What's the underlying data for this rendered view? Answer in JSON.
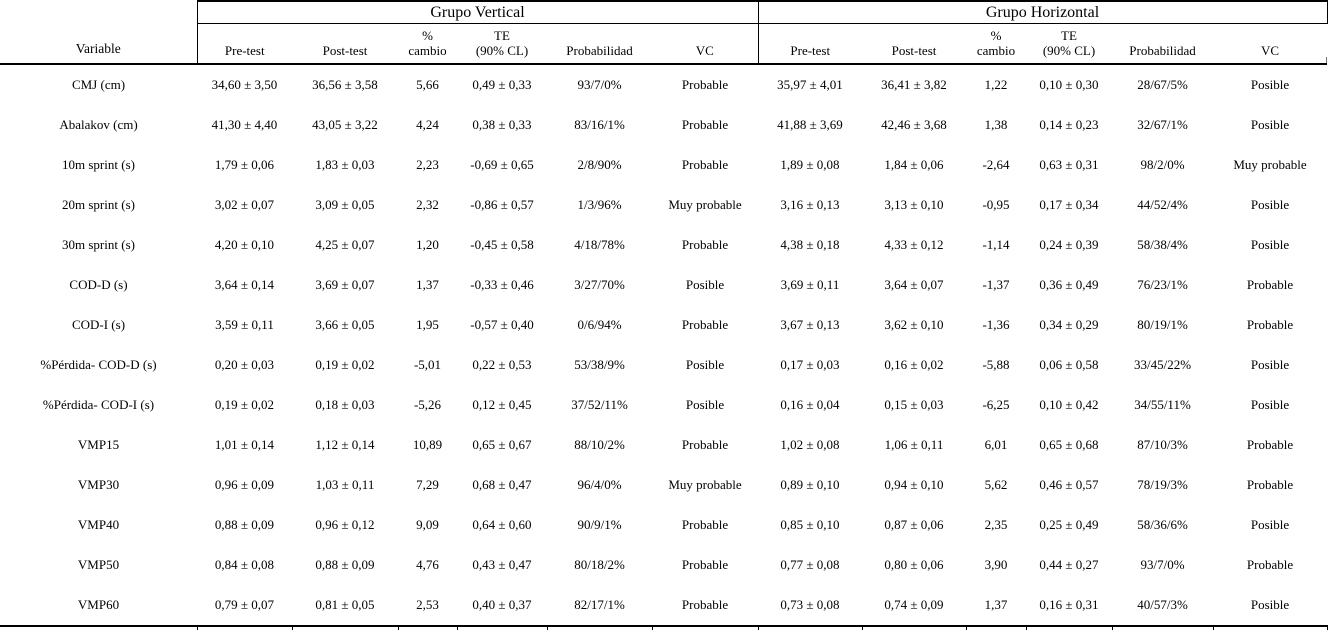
{
  "page": {
    "background_color": "#ffffff",
    "text_color": "#000000"
  },
  "table": {
    "group_headers": {
      "vertical": "Grupo Vertical",
      "horizontal": "Grupo Horizontal"
    },
    "variable_header": "Variable",
    "sub_headers": [
      "Pre-test",
      "Post-test",
      "%\ncambio",
      "TE\n(90% CL)",
      "Probabilidad",
      "VC"
    ],
    "rows": [
      {
        "variable": "CMJ (cm)",
        "vertical": [
          "34,60 ± 3,50",
          "36,56 ± 3,58",
          "5,66",
          "0,49 ± 0,33",
          "93/7/0%",
          "Probable"
        ],
        "horizontal": [
          "35,97 ± 4,01",
          "36,41 ± 3,82",
          "1,22",
          "0,10 ± 0,30",
          "28/67/5%",
          "Posible"
        ]
      },
      {
        "variable": "Abalakov (cm)",
        "vertical": [
          "41,30 ± 4,40",
          "43,05 ± 3,22",
          "4,24",
          "0,38 ± 0,33",
          "83/16/1%",
          "Probable"
        ],
        "horizontal": [
          "41,88 ± 3,69",
          "42,46 ± 3,68",
          "1,38",
          "0,14 ± 0,23",
          "32/67/1%",
          "Posible"
        ]
      },
      {
        "variable": "10m sprint (s)",
        "vertical": [
          "1,79 ± 0,06",
          "1,83 ± 0,03",
          "2,23",
          "-0,69 ± 0,65",
          "2/8/90%",
          "Probable"
        ],
        "horizontal": [
          "1,89 ± 0,08",
          "1,84 ± 0,06",
          "-2,64",
          "0,63 ± 0,31",
          "98/2/0%",
          "Muy probable"
        ]
      },
      {
        "variable": "20m sprint (s)",
        "vertical": [
          "3,02 ± 0,07",
          "3,09 ± 0,05",
          "2,32",
          "-0,86 ± 0,57",
          "1/3/96%",
          "Muy probable"
        ],
        "horizontal": [
          "3,16 ± 0,13",
          "3,13 ± 0,10",
          "-0,95",
          "0,17 ± 0,34",
          "44/52/4%",
          "Posible"
        ]
      },
      {
        "variable": "30m sprint (s)",
        "vertical": [
          "4,20 ± 0,10",
          "4,25 ± 0,07",
          "1,20",
          "-0,45 ± 0,58",
          "4/18/78%",
          "Probable"
        ],
        "horizontal": [
          "4,38 ± 0,18",
          "4,33 ± 0,12",
          "-1,14",
          "0,24 ± 0,39",
          "58/38/4%",
          "Posible"
        ]
      },
      {
        "variable": "COD-D (s)",
        "vertical": [
          "3,64 ± 0,14",
          "3,69 ± 0,07",
          "1,37",
          "-0,33 ± 0,46",
          "3/27/70%",
          "Posible"
        ],
        "horizontal": [
          "3,69 ± 0,11",
          "3,64 ± 0,07",
          "-1,37",
          "0,36 ± 0,49",
          "76/23/1%",
          "Probable"
        ]
      },
      {
        "variable": "COD-I (s)",
        "vertical": [
          "3,59 ± 0,11",
          "3,66 ± 0,05",
          "1,95",
          "-0,57 ± 0,40",
          "0/6/94%",
          "Probable"
        ],
        "horizontal": [
          "3,67 ± 0,13",
          "3,62 ± 0,10",
          "-1,36",
          "0,34 ± 0,29",
          "80/19/1%",
          "Probable"
        ]
      },
      {
        "variable": "%Pérdida- COD-D (s)",
        "vertical": [
          "0,20 ± 0,03",
          "0,19 ± 0,02",
          "-5,01",
          "0,22 ± 0,53",
          "53/38/9%",
          "Posible"
        ],
        "horizontal": [
          "0,17 ± 0,03",
          "0,16 ± 0,02",
          "-5,88",
          "0,06 ± 0,58",
          "33/45/22%",
          "Posible"
        ]
      },
      {
        "variable": "%Pérdida- COD-I (s)",
        "vertical": [
          "0,19 ± 0,02",
          "0,18 ± 0,03",
          "-5,26",
          "0,12 ± 0,45",
          "37/52/11%",
          "Posible"
        ],
        "horizontal": [
          "0,16 ± 0,04",
          "0,15 ± 0,03",
          "-6,25",
          "0,10 ± 0,42",
          "34/55/11%",
          "Posible"
        ]
      },
      {
        "variable": "VMP15",
        "vertical": [
          "1,01 ± 0,14",
          "1,12 ± 0,14",
          "10,89",
          "0,65 ± 0,67",
          "88/10/2%",
          "Probable"
        ],
        "horizontal": [
          "1,02 ± 0,08",
          "1,06 ± 0,11",
          "6,01",
          "0,65 ± 0,68",
          "87/10/3%",
          "Probable"
        ]
      },
      {
        "variable": "VMP30",
        "vertical": [
          "0,96 ± 0,09",
          "1,03 ± 0,11",
          "7,29",
          "0,68 ± 0,47",
          "96/4/0%",
          "Muy probable"
        ],
        "horizontal": [
          "0,89 ± 0,10",
          "0,94 ± 0,10",
          "5,62",
          "0,46 ± 0,57",
          "78/19/3%",
          "Probable"
        ]
      },
      {
        "variable": "VMP40",
        "vertical": [
          "0,88 ± 0,09",
          "0,96 ± 0,12",
          "9,09",
          "0,64 ± 0,60",
          "90/9/1%",
          "Probable"
        ],
        "horizontal": [
          "0,85 ± 0,10",
          "0,87 ± 0,06",
          "2,35",
          "0,25 ± 0,49",
          "58/36/6%",
          "Posible"
        ]
      },
      {
        "variable": "VMP50",
        "vertical": [
          "0,84 ± 0,08",
          "0,88 ± 0,09",
          "4,76",
          "0,43 ± 0,47",
          "80/18/2%",
          "Probable"
        ],
        "horizontal": [
          "0,77 ± 0,08",
          "0,80 ± 0,06",
          "3,90",
          "0,44 ± 0,27",
          "93/7/0%",
          "Probable"
        ]
      },
      {
        "variable": "VMP60",
        "vertical": [
          "0,79 ± 0,07",
          "0,81 ± 0,05",
          "2,53",
          "0,40 ± 0,37",
          "82/17/1%",
          "Probable"
        ],
        "horizontal": [
          "0,73 ± 0,08",
          "0,74 ± 0,09",
          "1,37",
          "0,16 ± 0,31",
          "40/57/3%",
          "Posible"
        ]
      }
    ]
  }
}
